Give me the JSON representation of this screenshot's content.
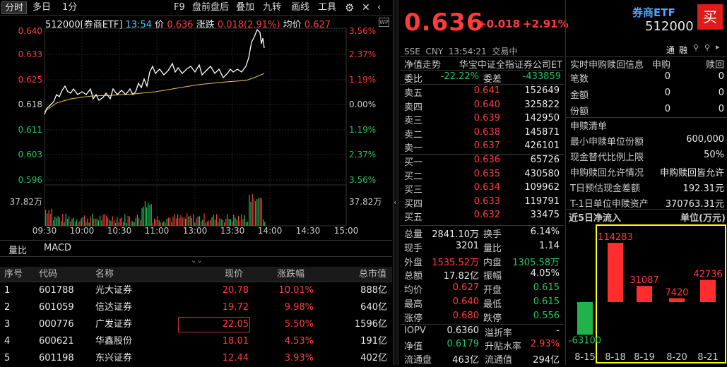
{
  "toolbar": {
    "items": [
      "分时",
      "多日",
      "1分",
      "F9",
      "盘前盘后",
      "叠加",
      "九转",
      "画线",
      "工具"
    ]
  },
  "chart_info": {
    "code": "512000[券商ETF]",
    "time": "13:54",
    "price_label": "价",
    "price": "0.636",
    "chg_label": "涨跌",
    "chg": "0.018(2.91%)",
    "avg_label": "均价",
    "avg": "0.627"
  },
  "y_left": [
    "0.640",
    "0.633",
    "0.625",
    "0.618",
    "0.611",
    "0.603",
    "0.596"
  ],
  "y_right": [
    "3.56%",
    "2.37%",
    "1.19%",
    "0.00%",
    "1.19%",
    "2.37%",
    "3.56%"
  ],
  "vol_label_left": "37.82万",
  "vol_label_right": "37.82万",
  "x_ticks": [
    "09:30",
    "10:00",
    "10:30",
    "11:00",
    "13:00",
    "13:30",
    "14:00",
    "14:30",
    "15:00"
  ],
  "subtabs": [
    "量比",
    "MACD"
  ],
  "table": {
    "headers": [
      "序号",
      "代码",
      "名称",
      "现价",
      "涨跌幅",
      "总市值"
    ],
    "rows": [
      [
        "1",
        "601788",
        "光大证券",
        "20.78",
        "10.01%",
        "888亿"
      ],
      [
        "2",
        "601059",
        "信达证券",
        "19.72",
        "9.98%",
        "640亿"
      ],
      [
        "3",
        "000776",
        "广发证券",
        "22.05",
        "5.50%",
        "1596亿"
      ],
      [
        "4",
        "600621",
        "华鑫股份",
        "18.01",
        "4.53%",
        "191亿"
      ],
      [
        "5",
        "601198",
        "东兴证券",
        "12.44",
        "3.93%",
        "402亿"
      ]
    ]
  },
  "quote": {
    "price": "0.636",
    "chg": "+0.018",
    "pct": "+2.91%",
    "market": "SSE",
    "currency": "CNY",
    "time": "13:54:21",
    "status": "交易中",
    "nav_label": "净值走势",
    "index_name": "华宝中证全指证券公司ET",
    "wb_label": "委比",
    "wb": "-22.22%",
    "wc_label": "委差",
    "wc": "-433859",
    "sells": [
      [
        "卖五",
        "0.641",
        "152649"
      ],
      [
        "卖四",
        "0.640",
        "325822"
      ],
      [
        "卖三",
        "0.639",
        "142950"
      ],
      [
        "卖二",
        "0.638",
        "145871"
      ],
      [
        "卖一",
        "0.637",
        "426101"
      ]
    ],
    "buys": [
      [
        "买一",
        "0.636",
        "65726"
      ],
      [
        "买二",
        "0.635",
        "430580"
      ],
      [
        "买三",
        "0.634",
        "109962"
      ],
      [
        "买四",
        "0.633",
        "119791"
      ],
      [
        "买五",
        "0.632",
        "33475"
      ]
    ],
    "stats": [
      [
        "总量",
        "2841.10万",
        "换手",
        "6.14%"
      ],
      [
        "现手",
        "3201",
        "量比",
        "1.14"
      ],
      [
        "外盘",
        "1535.52万",
        "内盘",
        "1305.58万"
      ],
      [
        "总额",
        "17.82亿",
        "振幅",
        "4.05%"
      ],
      [
        "均价",
        "0.627",
        "开盘",
        "0.615"
      ],
      [
        "最高",
        "0.640",
        "最低",
        "0.615"
      ],
      [
        "涨停",
        "0.680",
        "跌停",
        "0.556"
      ]
    ],
    "stats2": [
      [
        "IOPV",
        "0.6360",
        "溢折率",
        "-"
      ],
      [
        "净值",
        "0.6179",
        "升贴水率",
        "2.93%"
      ],
      [
        "流通盘",
        "463亿",
        "流通值",
        "294亿"
      ]
    ]
  },
  "etf": {
    "name": "券商ETF",
    "code": "512000",
    "buy_btn": "买",
    "icons": [
      "通",
      "融"
    ],
    "sr_title": "实时申购赎回信息",
    "sr_cols": [
      "申购",
      "赎回"
    ],
    "sr_rows": [
      [
        "笔数",
        "0",
        "0"
      ],
      [
        "金额",
        "0",
        "0"
      ],
      [
        "份额",
        "0",
        "0"
      ]
    ],
    "list_title": "申赎清单",
    "list": [
      [
        "最小申赎单位份额",
        "600,000"
      ],
      [
        "现金替代比例上限",
        "50%"
      ],
      [
        "申购赎回允许情况",
        "申购赎回皆允许"
      ],
      [
        "T日预估现金差额",
        "192.31元"
      ],
      [
        "T-1日单位申赎资产",
        "370763.31元"
      ]
    ],
    "flow_title": "近5日净流入",
    "flow_unit": "单位(万元)"
  },
  "chart_data": {
    "type": "bar",
    "categories": [
      "8-15",
      "8-18",
      "8-19",
      "8-20",
      "8-21"
    ],
    "values": [
      -63100,
      114283,
      31087,
      7420,
      42736
    ],
    "labels": [
      "-63100",
      "114283",
      "31087",
      "7420",
      "42736"
    ]
  },
  "colors": {
    "up": "#ff3b3b",
    "down": "#22c55e",
    "accent": "#e6c84b"
  }
}
